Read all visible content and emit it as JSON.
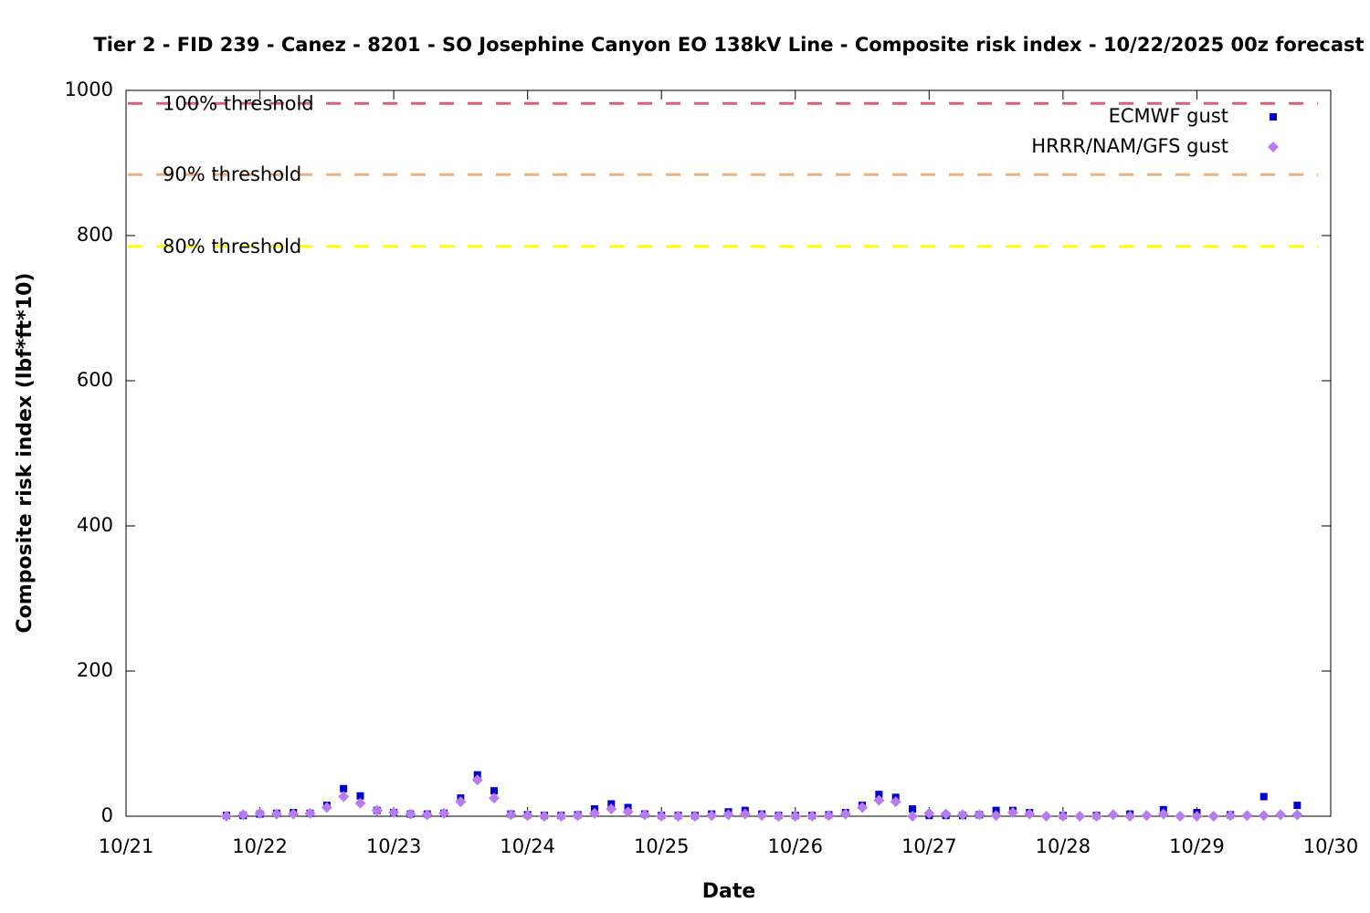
{
  "chart_data": {
    "type": "scatter",
    "title": "Tier 2 - FID 239 - Canez - 8201 - SO Josephine Canyon EO 138kV Line - Composite risk index - 10/22/2025 00z forecast",
    "x_label": "Date",
    "y_label": "Composite risk index (lbf*ft*10)",
    "xlim": [
      0,
      9
    ],
    "xticks": [
      {
        "value": 0,
        "label": "10/21"
      },
      {
        "value": 1,
        "label": "10/22"
      },
      {
        "value": 2,
        "label": "10/23"
      },
      {
        "value": 3,
        "label": "10/24"
      },
      {
        "value": 4,
        "label": "10/25"
      },
      {
        "value": 5,
        "label": "10/26"
      },
      {
        "value": 6,
        "label": "10/27"
      },
      {
        "value": 7,
        "label": "10/28"
      },
      {
        "value": 8,
        "label": "10/29"
      },
      {
        "value": 9,
        "label": "10/30"
      }
    ],
    "ylim": [
      0,
      1000
    ],
    "yticks": [
      0,
      200,
      400,
      600,
      800,
      1000
    ],
    "legend": "top-right",
    "thresholds": [
      {
        "label": "100% threshold",
        "value": 982,
        "color": "#d9607a"
      },
      {
        "label": "90% threshold",
        "value": 884,
        "color": "#f0b07e"
      },
      {
        "label": "80% threshold",
        "value": 785,
        "color": "#ffff00"
      }
    ],
    "series": [
      {
        "name": "ECMWF gust",
        "color": "#0000cc",
        "marker": "square",
        "x": [
          0.75,
          0.875,
          1.0,
          1.125,
          1.25,
          1.375,
          1.5,
          1.625,
          1.75,
          1.875,
          2.0,
          2.125,
          2.25,
          2.375,
          2.5,
          2.625,
          2.75,
          2.875,
          3.0,
          3.125,
          3.25,
          3.375,
          3.5,
          3.625,
          3.75,
          3.875,
          4.0,
          4.125,
          4.25,
          4.375,
          4.5,
          4.625,
          4.75,
          4.875,
          5.0,
          5.125,
          5.25,
          5.375,
          5.5,
          5.625,
          5.75,
          5.875,
          6.0,
          6.125,
          6.25,
          6.375,
          6.5,
          6.625,
          6.75,
          7.0,
          7.25,
          7.5,
          7.75,
          8.0,
          8.25,
          8.5,
          8.75
        ],
        "values": [
          1,
          1,
          3,
          4,
          5,
          4,
          15,
          38,
          28,
          8,
          5,
          3,
          3,
          4,
          25,
          57,
          35,
          3,
          2,
          1,
          1,
          2,
          10,
          17,
          12,
          3,
          1,
          1,
          1,
          3,
          6,
          8,
          3,
          1,
          1,
          1,
          2,
          5,
          15,
          30,
          26,
          10,
          1,
          1,
          1,
          2,
          8,
          8,
          5,
          1,
          1,
          3,
          9,
          5,
          2,
          27,
          15
        ]
      },
      {
        "name": "HRRR/NAM/GFS gust",
        "color": "#b87bf0",
        "marker": "diamond",
        "x": [
          0.75,
          0.875,
          1.0,
          1.125,
          1.25,
          1.375,
          1.5,
          1.625,
          1.75,
          1.875,
          2.0,
          2.125,
          2.25,
          2.375,
          2.5,
          2.625,
          2.75,
          2.875,
          3.0,
          3.125,
          3.25,
          3.375,
          3.5,
          3.625,
          3.75,
          3.875,
          4.0,
          4.125,
          4.25,
          4.375,
          4.5,
          4.625,
          4.75,
          4.875,
          5.0,
          5.125,
          5.25,
          5.375,
          5.5,
          5.625,
          5.75,
          5.875,
          6.0,
          6.125,
          6.25,
          6.375,
          6.5,
          6.625,
          6.75,
          6.875,
          7.0,
          7.125,
          7.25,
          7.375,
          7.5,
          7.625,
          7.75,
          7.875,
          8.0,
          8.125,
          8.25,
          8.375,
          8.5,
          8.625,
          8.75
        ],
        "values": [
          0,
          2,
          4,
          3,
          3,
          4,
          12,
          27,
          18,
          8,
          5,
          3,
          2,
          4,
          20,
          50,
          25,
          2,
          1,
          0,
          0,
          1,
          4,
          10,
          6,
          2,
          0,
          0,
          0,
          1,
          2,
          3,
          1,
          0,
          0,
          0,
          1,
          3,
          12,
          22,
          20,
          0,
          4,
          3,
          2,
          2,
          1,
          5,
          3,
          0,
          0,
          0,
          0,
          2,
          0,
          1,
          3,
          0,
          0,
          0,
          1,
          1,
          1,
          2,
          2
        ]
      }
    ]
  }
}
